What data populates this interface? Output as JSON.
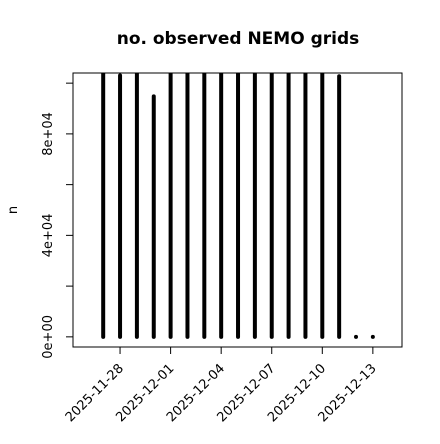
{
  "chart_data": {
    "type": "spike",
    "title": "no. observed NEMO grids",
    "y_label": "n",
    "x": [
      "2025-11-27",
      "2025-11-28",
      "2025-11-29",
      "2025-11-30",
      "2025-12-01",
      "2025-12-02",
      "2025-12-03",
      "2025-12-04",
      "2025-12-05",
      "2025-12-06",
      "2025-12-07",
      "2025-12-08",
      "2025-12-09",
      "2025-12-10",
      "2025-12-11",
      "2025-12-12",
      "2025-12-13"
    ],
    "values": [
      104000,
      103000,
      104000,
      94800,
      104000,
      104000,
      104000,
      104000,
      104000,
      104000,
      104000,
      104000,
      104000,
      104000,
      102700,
      0,
      0
    ],
    "color": "#000000",
    "xlim": [
      "2025-11-25T05:00",
      "2025-12-14T17:30"
    ],
    "xticks": [
      "2025-11-28",
      "2025-12-01",
      "2025-12-04",
      "2025-12-07",
      "2025-12-10",
      "2025-12-13"
    ],
    "ylim": [
      -4000,
      104000
    ],
    "yticks": [
      {
        "value": 0,
        "label": "0e+00"
      },
      {
        "value": 40000,
        "label": "4e+04"
      },
      {
        "value": 80000,
        "label": "8e+04"
      }
    ],
    "yminor_ticks": [
      20000,
      60000,
      100000
    ]
  }
}
